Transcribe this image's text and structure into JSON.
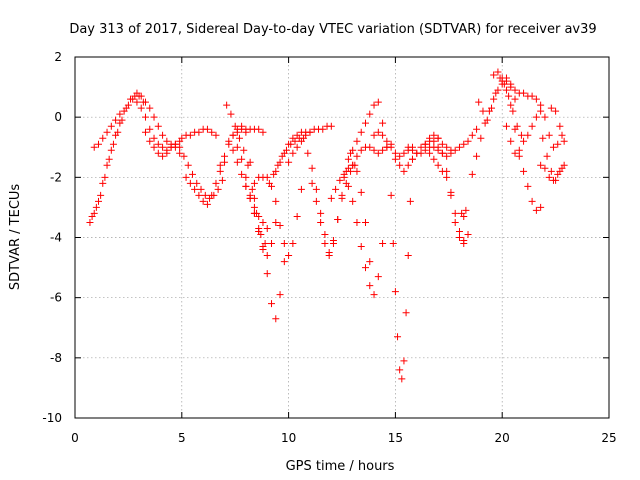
{
  "chart_data": {
    "type": "scatter",
    "title": "Day 313 of 2017, Sidereal Day-to-day VTEC variation (SDTVAR) for receiver av39",
    "xlabel": "GPS time / hours",
    "ylabel": "SDTVAR / TECUs",
    "xlim": [
      0,
      25
    ],
    "ylim": [
      -10,
      2
    ],
    "xticks": [
      0,
      5,
      10,
      15,
      20,
      25
    ],
    "yticks": [
      -10,
      -8,
      -6,
      -4,
      -2,
      0,
      2
    ],
    "grid": true,
    "marker": "plus",
    "color": "#ff0000",
    "series": [
      {
        "name": "SDTVAR",
        "x": [
          0.7,
          0.9,
          1.1,
          1.3,
          1.5,
          1.7,
          1.9,
          2.1,
          2.3,
          2.5,
          2.7,
          2.9,
          3.1,
          3.3,
          3.5,
          3.7,
          3.9,
          4.1,
          4.3,
          4.5,
          4.7,
          4.9
        ],
        "y": [
          -3.5,
          -3.2,
          -2.8,
          -2.2,
          -1.6,
          -1.1,
          -0.6,
          -0.2,
          0.2,
          0.4,
          0.6,
          0.5,
          0.3,
          0.0,
          -0.4,
          -0.7,
          -0.9,
          -1.0,
          -1.1,
          -1.0,
          -0.9,
          -0.8
        ]
      },
      {
        "name": "SDTVAR",
        "x": [
          0.8,
          1.0,
          1.2,
          1.4,
          1.6,
          1.8,
          2.0,
          2.2,
          2.4,
          2.6,
          2.8,
          3.0,
          3.2
        ],
        "y": [
          -3.3,
          -3.0,
          -2.6,
          -2.0,
          -1.4,
          -0.9,
          -0.5,
          -0.1,
          0.3,
          0.6,
          0.7,
          0.7,
          0.5
        ]
      },
      {
        "name": "SDTVAR",
        "x": [
          0.9,
          1.1,
          1.3,
          1.5,
          1.7,
          1.9,
          2.1
        ],
        "y": [
          -1.0,
          -0.9,
          -0.7,
          -0.5,
          -0.3,
          -0.1,
          0.1
        ]
      },
      {
        "name": "SDTVAR",
        "x": [
          2.9,
          3.1,
          3.3,
          3.5,
          3.7,
          3.9,
          4.1,
          4.3,
          4.5,
          4.7,
          4.9
        ],
        "y": [
          0.8,
          0.7,
          0.5,
          0.3,
          0.0,
          -0.3,
          -0.6,
          -0.8,
          -0.9,
          -1.0,
          -1.2
        ]
      },
      {
        "name": "SDTVAR",
        "x": [
          3.3,
          3.5,
          3.7,
          3.9,
          4.1,
          4.3,
          4.5,
          4.7,
          4.9
        ],
        "y": [
          -0.5,
          -0.8,
          -1.0,
          -1.2,
          -1.3,
          -1.2,
          -1.0,
          -0.9,
          -1.0
        ]
      },
      {
        "name": "SDTVAR",
        "x": [
          5.0,
          5.2,
          5.4,
          5.6,
          5.8,
          6.0,
          6.2,
          6.4,
          6.6
        ],
        "y": [
          -0.7,
          -0.6,
          -0.6,
          -0.5,
          -0.5,
          -0.4,
          -0.4,
          -0.5,
          -0.6
        ]
      },
      {
        "name": "SDTVAR",
        "x": [
          5.1,
          5.3,
          5.5,
          5.7,
          5.9,
          6.1,
          6.3,
          6.5,
          6.7,
          6.9
        ],
        "y": [
          -1.3,
          -1.6,
          -1.9,
          -2.2,
          -2.4,
          -2.6,
          -2.7,
          -2.6,
          -2.4,
          -2.1
        ]
      },
      {
        "name": "SDTVAR",
        "x": [
          5.2,
          5.4,
          5.6,
          5.8,
          6.0,
          6.2,
          6.4,
          6.6,
          6.8,
          7.0
        ],
        "y": [
          -2.0,
          -2.2,
          -2.4,
          -2.6,
          -2.8,
          -2.9,
          -2.6,
          -2.2,
          -1.8,
          -1.5
        ]
      },
      {
        "name": "SDTVAR",
        "x": [
          6.8,
          7.0,
          7.2,
          7.4,
          7.6,
          7.8,
          8.0,
          8.2,
          8.4,
          8.6
        ],
        "y": [
          -1.6,
          -1.3,
          -0.9,
          -0.6,
          -0.4,
          -0.3,
          -0.5,
          -1.5,
          -2.7,
          -3.7
        ]
      },
      {
        "name": "SDTVAR",
        "x": [
          7.1,
          7.3,
          7.5,
          7.7,
          7.9,
          8.1,
          8.3,
          8.5,
          8.7,
          8.9
        ],
        "y": [
          0.4,
          0.1,
          -0.3,
          -0.7,
          -1.1,
          -1.6,
          -2.4,
          -3.2,
          -3.9,
          -4.2
        ]
      },
      {
        "name": "SDTVAR",
        "x": [
          7.2,
          7.4,
          7.6,
          7.8,
          8.0,
          8.2,
          8.4,
          8.6,
          8.8,
          9.0
        ],
        "y": [
          -0.8,
          -1.1,
          -1.5,
          -1.9,
          -2.3,
          -2.7,
          -3.0,
          -3.3,
          -3.5,
          -3.7
        ]
      },
      {
        "name": "SDTVAR",
        "x": [
          7.6,
          7.8,
          8.0,
          8.2,
          8.4,
          8.6,
          8.8,
          9.0,
          9.2,
          9.4
        ],
        "y": [
          -1.0,
          -1.4,
          -2.0,
          -2.6,
          -3.2,
          -3.8,
          -4.3,
          -4.6,
          -4.2,
          -3.5
        ]
      },
      {
        "name": "SDTVAR",
        "x": [
          7.4,
          7.6,
          7.8,
          8.0,
          8.2,
          8.4,
          8.6,
          8.8
        ],
        "y": [
          -0.6,
          -0.5,
          -0.4,
          -0.4,
          -0.4,
          -0.4,
          -0.4,
          -0.5
        ]
      },
      {
        "name": "SDTVAR",
        "x": [
          8.0,
          8.2,
          8.4,
          8.6,
          8.8,
          9.0,
          9.2,
          9.4,
          9.6,
          9.8
        ],
        "y": [
          -2.3,
          -2.7,
          -3.2,
          -3.8,
          -4.4,
          -5.2,
          -6.2,
          -6.7,
          -5.9,
          -4.8
        ]
      },
      {
        "name": "SDTVAR",
        "x": [
          8.4,
          8.6,
          8.8,
          9.0,
          9.2,
          9.4,
          9.6,
          9.8,
          10.0,
          10.2,
          10.4,
          10.6
        ],
        "y": [
          -2.2,
          -2.0,
          -2.0,
          -2.0,
          -2.3,
          -2.8,
          -3.6,
          -4.2,
          -4.6,
          -4.2,
          -3.3,
          -2.4
        ]
      },
      {
        "name": "SDTVAR",
        "x": [
          9.1,
          9.3,
          9.5,
          9.7,
          9.9,
          10.1,
          10.3,
          10.5,
          10.7
        ],
        "y": [
          -2.2,
          -1.9,
          -1.6,
          -1.3,
          -1.1,
          -0.9,
          -0.8,
          -0.7,
          -0.7
        ]
      },
      {
        "name": "SDTVAR",
        "x": [
          9.4,
          9.6,
          9.8,
          10.0,
          10.2,
          10.4,
          10.6,
          10.8,
          11.0
        ],
        "y": [
          -1.8,
          -1.5,
          -1.2,
          -0.9,
          -0.7,
          -0.6,
          -0.5,
          -0.5,
          -0.5
        ]
      },
      {
        "name": "SDTVAR",
        "x": [
          10.0,
          10.2,
          10.4,
          10.6,
          10.8,
          11.0,
          11.2,
          11.4,
          11.6,
          11.8,
          12.0
        ],
        "y": [
          -1.5,
          -1.2,
          -1.0,
          -0.8,
          -0.6,
          -0.5,
          -0.4,
          -0.4,
          -0.4,
          -0.3,
          -0.3
        ]
      },
      {
        "name": "SDTVAR",
        "x": [
          10.9,
          11.1,
          11.3,
          11.5,
          11.7,
          11.9,
          12.1,
          12.3,
          12.5,
          12.7,
          12.9
        ],
        "y": [
          -1.2,
          -1.7,
          -2.4,
          -3.2,
          -3.9,
          -4.5,
          -4.1,
          -3.4,
          -2.6,
          -1.8,
          -1.2
        ]
      },
      {
        "name": "SDTVAR",
        "x": [
          11.1,
          11.3,
          11.5,
          11.7,
          11.9,
          12.1,
          12.3,
          12.5,
          12.7,
          12.9,
          13.1
        ],
        "y": [
          -2.2,
          -2.8,
          -3.5,
          -4.2,
          -4.6,
          -4.2,
          -3.4,
          -2.7,
          -2.2,
          -1.8,
          -1.6
        ]
      },
      {
        "name": "SDTVAR",
        "x": [
          12.0,
          12.2,
          12.4,
          12.6,
          12.8,
          13.0,
          13.2,
          13.4,
          13.6,
          13.8
        ],
        "y": [
          -2.7,
          -2.4,
          -2.1,
          -1.9,
          -1.7,
          -1.6,
          -1.8,
          -2.5,
          -3.5,
          -4.8
        ]
      },
      {
        "name": "SDTVAR",
        "x": [
          12.6,
          12.8,
          13.0,
          13.2,
          13.4,
          13.6,
          13.8,
          14.0,
          14.2,
          14.4
        ],
        "y": [
          -2.0,
          -2.3,
          -2.8,
          -3.5,
          -4.3,
          -5.0,
          -5.6,
          -5.9,
          -5.3,
          -4.2
        ]
      },
      {
        "name": "SDTVAR",
        "x": [
          12.8,
          13.0,
          13.2,
          13.4,
          13.6,
          13.8,
          14.0,
          14.2,
          14.4,
          14.6
        ],
        "y": [
          -1.4,
          -1.1,
          -0.8,
          -0.5,
          -0.2,
          0.1,
          0.4,
          0.5,
          -0.2,
          -1.0
        ]
      },
      {
        "name": "SDTVAR",
        "x": [
          13.0,
          13.2,
          13.4,
          13.6,
          13.8,
          14.0,
          14.2,
          14.4,
          14.6,
          14.8
        ],
        "y": [
          -1.6,
          -1.3,
          -1.1,
          -1.0,
          -1.0,
          -1.1,
          -1.2,
          -1.1,
          -1.0,
          -0.9
        ]
      },
      {
        "name": "SDTVAR",
        "x": [
          14.0,
          14.2,
          14.4,
          14.6,
          14.8,
          15.0,
          15.2,
          15.4,
          15.6,
          15.8
        ],
        "y": [
          -0.6,
          -0.5,
          -0.6,
          -0.8,
          -1.0,
          -1.2,
          -1.3,
          -1.2,
          -1.1,
          -1.0
        ]
      },
      {
        "name": "SDTVAR",
        "x": [
          14.8,
          14.9,
          15.0,
          15.1,
          15.2,
          15.3,
          15.4,
          15.5,
          15.6,
          15.7,
          15.8
        ],
        "y": [
          -2.6,
          -4.2,
          -5.8,
          -7.3,
          -8.4,
          -8.7,
          -8.1,
          -6.5,
          -4.6,
          -2.8,
          -1.4
        ]
      },
      {
        "name": "SDTVAR",
        "x": [
          15.0,
          15.2,
          15.4,
          15.6,
          15.8,
          16.0,
          16.2,
          16.4,
          16.6,
          16.8,
          17.0
        ],
        "y": [
          -1.4,
          -1.6,
          -1.8,
          -1.6,
          -1.4,
          -1.2,
          -1.0,
          -0.9,
          -0.8,
          -0.8,
          -0.7
        ]
      },
      {
        "name": "SDTVAR",
        "x": [
          15.6,
          15.8,
          16.0,
          16.2,
          16.4,
          16.6,
          16.8,
          17.0,
          17.2,
          17.4,
          17.6
        ],
        "y": [
          -1.0,
          -1.1,
          -1.2,
          -1.2,
          -1.1,
          -1.0,
          -1.0,
          -1.1,
          -1.2,
          -1.3,
          -1.2
        ]
      },
      {
        "name": "SDTVAR",
        "x": [
          16.4,
          16.6,
          16.8,
          17.0,
          17.2,
          17.4,
          17.6,
          17.8,
          18.0,
          18.2
        ],
        "y": [
          -0.9,
          -0.7,
          -0.6,
          -0.7,
          -1.2,
          -1.8,
          -2.6,
          -3.5,
          -4.0,
          -4.2
        ]
      },
      {
        "name": "SDTVAR",
        "x": [
          16.6,
          16.8,
          17.0,
          17.2,
          17.4,
          17.6,
          17.8,
          18.0,
          18.2,
          18.4
        ],
        "y": [
          -1.2,
          -1.4,
          -1.6,
          -1.8,
          -2.0,
          -2.5,
          -3.2,
          -3.8,
          -4.1,
          -3.9
        ]
      },
      {
        "name": "SDTVAR",
        "x": [
          17.0,
          17.2,
          17.4,
          17.6,
          17.8,
          18.0,
          18.2,
          18.4,
          18.6,
          18.8
        ],
        "y": [
          -1.0,
          -0.9,
          -1.0,
          -1.1,
          -1.1,
          -1.0,
          -0.9,
          -0.8,
          -0.6,
          -0.4
        ]
      },
      {
        "name": "SDTVAR",
        "x": [
          18.1,
          18.2,
          18.3
        ],
        "y": [
          -3.2,
          -3.3,
          -3.1
        ]
      },
      {
        "name": "SDTVAR",
        "x": [
          18.6,
          18.8,
          19.0,
          19.2,
          19.4,
          19.6,
          19.8,
          20.0,
          20.2,
          20.4,
          20.6
        ],
        "y": [
          -1.9,
          -1.3,
          -0.7,
          -0.2,
          0.2,
          0.6,
          0.9,
          1.1,
          1.2,
          1.0,
          0.6
        ]
      },
      {
        "name": "SDTVAR",
        "x": [
          18.9,
          19.1,
          19.3,
          19.5,
          19.7,
          19.9,
          20.1,
          20.3,
          20.5,
          20.7,
          20.9
        ],
        "y": [
          0.5,
          0.2,
          -0.1,
          0.3,
          0.8,
          1.3,
          1.1,
          0.7,
          0.2,
          -0.3,
          -0.6
        ]
      },
      {
        "name": "SDTVAR",
        "x": [
          19.6,
          19.8,
          20.0,
          20.2,
          20.4,
          20.6,
          20.8,
          21.0,
          21.2,
          21.4,
          21.6,
          21.8
        ],
        "y": [
          1.4,
          1.5,
          1.3,
          0.9,
          0.4,
          -0.4,
          -1.3,
          -1.8,
          -2.3,
          -2.8,
          -3.1,
          -3.0
        ]
      },
      {
        "name": "SDTVAR",
        "x": [
          20.0,
          20.2,
          20.4,
          20.6,
          20.8,
          21.0,
          21.2,
          21.4,
          21.6,
          21.8,
          22.0,
          22.2,
          22.4,
          22.6,
          22.8
        ],
        "y": [
          1.2,
          1.3,
          1.1,
          0.9,
          0.8,
          0.8,
          0.7,
          0.7,
          0.6,
          0.4,
          0.0,
          -0.6,
          -1.0,
          -0.9,
          -0.6
        ]
      },
      {
        "name": "SDTVAR",
        "x": [
          20.2,
          20.4,
          20.6,
          20.8,
          21.0,
          21.2,
          21.4,
          21.6,
          21.8
        ],
        "y": [
          -0.3,
          -0.8,
          -1.2,
          -1.1,
          -0.8,
          -0.6,
          -0.3,
          0.0,
          0.2
        ]
      },
      {
        "name": "SDTVAR",
        "x": [
          21.8,
          22.0,
          22.2,
          22.4,
          22.6,
          22.8
        ],
        "y": [
          -1.6,
          -1.7,
          -2.0,
          -2.1,
          -1.9,
          -1.7
        ]
      },
      {
        "name": "SDTVAR",
        "x": [
          21.9,
          22.1,
          22.3,
          22.5,
          22.7,
          22.9
        ],
        "y": [
          -0.7,
          -1.3,
          -1.8,
          -2.1,
          -1.8,
          -1.6
        ]
      },
      {
        "name": "SDTVAR",
        "x": [
          22.3,
          22.5,
          22.7,
          22.9
        ],
        "y": [
          0.3,
          0.2,
          -0.3,
          -0.8
        ]
      }
    ]
  }
}
